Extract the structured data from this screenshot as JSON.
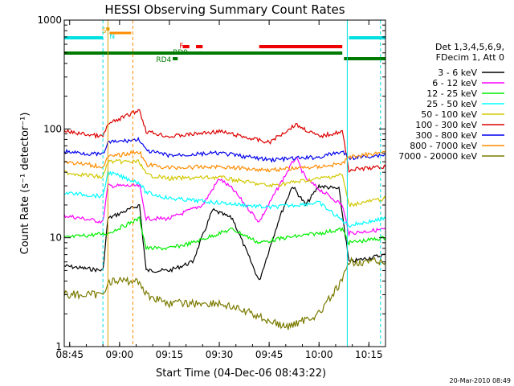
{
  "chart_data": {
    "type": "line",
    "title": "HESSI Observing Summary Count Rates",
    "ylabel": "Count Rate (s⁻¹ detector⁻¹)",
    "xlabel": "Start Time (04-Dec-06 08:43:22)",
    "yscale": "log",
    "ylim": [
      1,
      1000
    ],
    "xlim": [
      "08:43:22",
      "10:20:00"
    ],
    "x_ticks": [
      "08:45",
      "09:00",
      "09:15",
      "09:30",
      "09:45",
      "10:00",
      "10:15"
    ],
    "y_ticks": [
      "1",
      "10",
      "100",
      "1000"
    ],
    "legend_header": [
      "Det 1,3,4,5,6,9,",
      "FDecim 1, Att 0"
    ],
    "timestamp": "20-Mar-2010 08:49",
    "flags": [
      {
        "label": "S",
        "color": "#e0a000"
      },
      {
        "label": "N",
        "color": "#00e0e0"
      },
      {
        "label": "F",
        "color": "#ee0000"
      },
      {
        "label": "RD9",
        "color": "#007a00"
      },
      {
        "label": "RD4",
        "color": "#007a00"
      }
    ],
    "series": [
      {
        "name": "3 - 6 keV",
        "color": "#000000",
        "points": [
          [
            "08:43:22",
            5.5
          ],
          [
            "08:55:00",
            5
          ],
          [
            "08:56:30",
            15
          ],
          [
            "09:06:00",
            20
          ],
          [
            "09:08:00",
            5
          ],
          [
            "09:15:00",
            5
          ],
          [
            "09:22:00",
            6
          ],
          [
            "09:28:00",
            18
          ],
          [
            "09:34:00",
            15
          ],
          [
            "09:42:00",
            4
          ],
          [
            "09:48:00",
            15
          ],
          [
            "09:52:00",
            30
          ],
          [
            "09:56:00",
            20
          ],
          [
            "10:00:00",
            30
          ],
          [
            "10:06:00",
            28
          ],
          [
            "10:09:00",
            6
          ],
          [
            "10:20:00",
            7
          ]
        ]
      },
      {
        "name": "6 - 12 keV",
        "color": "#ff00ff",
        "points": [
          [
            "08:43:22",
            16
          ],
          [
            "08:55:00",
            14
          ],
          [
            "08:56:30",
            30
          ],
          [
            "09:06:00",
            30
          ],
          [
            "09:08:00",
            15
          ],
          [
            "09:15:00",
            15
          ],
          [
            "09:25:00",
            20
          ],
          [
            "09:30:00",
            35
          ],
          [
            "09:34:00",
            28
          ],
          [
            "09:42:00",
            14
          ],
          [
            "09:48:00",
            30
          ],
          [
            "09:53:00",
            55
          ],
          [
            "09:56:00",
            35
          ],
          [
            "10:00:00",
            28
          ],
          [
            "10:07:00",
            20
          ],
          [
            "10:09:00",
            11
          ],
          [
            "10:20:00",
            12
          ]
        ]
      },
      {
        "name": "12 - 25 keV",
        "color": "#00ee00",
        "points": [
          [
            "08:43:22",
            10
          ],
          [
            "08:56:30",
            11
          ],
          [
            "09:06:00",
            15
          ],
          [
            "09:08:00",
            8
          ],
          [
            "09:15:00",
            8
          ],
          [
            "09:22:00",
            9
          ],
          [
            "09:30:00",
            11
          ],
          [
            "09:34:00",
            12
          ],
          [
            "09:42:00",
            9
          ],
          [
            "09:50:00",
            10
          ],
          [
            "10:00:00",
            11
          ],
          [
            "10:07:00",
            12
          ],
          [
            "10:09:00",
            9
          ],
          [
            "10:20:00",
            10
          ]
        ]
      },
      {
        "name": "25 - 50 keV",
        "color": "#00ffff",
        "points": [
          [
            "08:43:22",
            26
          ],
          [
            "08:55:00",
            24
          ],
          [
            "08:56:30",
            40
          ],
          [
            "09:06:00",
            32
          ],
          [
            "09:08:00",
            26
          ],
          [
            "09:15:00",
            23
          ],
          [
            "09:30:00",
            21
          ],
          [
            "09:45:00",
            19
          ],
          [
            "10:00:00",
            21
          ],
          [
            "10:09:00",
            13
          ],
          [
            "10:20:00",
            15
          ]
        ]
      },
      {
        "name": "50 - 100 keV",
        "color": "#d2c800",
        "points": [
          [
            "08:43:22",
            40
          ],
          [
            "08:55:00",
            36
          ],
          [
            "08:56:30",
            50
          ],
          [
            "09:06:00",
            50
          ],
          [
            "09:08:00",
            38
          ],
          [
            "09:15:00",
            35
          ],
          [
            "09:30:00",
            36
          ],
          [
            "09:45:00",
            30
          ],
          [
            "10:00:00",
            35
          ],
          [
            "10:07:00",
            38
          ],
          [
            "10:09:00",
            20
          ],
          [
            "10:20:00",
            23
          ]
        ]
      },
      {
        "name": "100 - 300 keV",
        "color": "#dd0000",
        "points": [
          [
            "08:43:22",
            95
          ],
          [
            "08:55:00",
            85
          ],
          [
            "08:56:30",
            110
          ],
          [
            "09:06:00",
            150
          ],
          [
            "09:08:00",
            95
          ],
          [
            "09:15:00",
            85
          ],
          [
            "09:30:00",
            95
          ],
          [
            "09:45:00",
            75
          ],
          [
            "09:53:00",
            110
          ],
          [
            "10:00:00",
            85
          ],
          [
            "10:07:00",
            95
          ],
          [
            "10:09:00",
            42
          ],
          [
            "10:20:00",
            45
          ]
        ]
      },
      {
        "name": "300 - 800 keV",
        "color": "#0000ee",
        "points": [
          [
            "08:43:22",
            62
          ],
          [
            "08:55:00",
            58
          ],
          [
            "08:56:30",
            75
          ],
          [
            "09:06:00",
            80
          ],
          [
            "09:08:00",
            63
          ],
          [
            "09:15:00",
            57
          ],
          [
            "09:30:00",
            60
          ],
          [
            "09:45:00",
            52
          ],
          [
            "10:00:00",
            55
          ],
          [
            "10:07:00",
            62
          ],
          [
            "10:09:00",
            54
          ],
          [
            "10:20:00",
            58
          ]
        ]
      },
      {
        "name": "800 - 7000 keV",
        "color": "#ff8c00",
        "points": [
          [
            "08:43:22",
            50
          ],
          [
            "08:55:00",
            45
          ],
          [
            "08:56:30",
            55
          ],
          [
            "09:06:00",
            62
          ],
          [
            "09:08:00",
            47
          ],
          [
            "09:15:00",
            44
          ],
          [
            "09:30:00",
            45
          ],
          [
            "09:45:00",
            42
          ],
          [
            "10:00:00",
            45
          ],
          [
            "10:07:00",
            48
          ],
          [
            "10:09:00",
            55
          ],
          [
            "10:20:00",
            62
          ]
        ]
      },
      {
        "name": "7000 - 20000 keV",
        "color": "#7a7a00",
        "points": [
          [
            "08:43:22",
            3
          ],
          [
            "08:55:00",
            3
          ],
          [
            "08:56:30",
            4
          ],
          [
            "09:06:00",
            4
          ],
          [
            "09:08:00",
            3
          ],
          [
            "09:15:00",
            2.5
          ],
          [
            "09:30:00",
            2.5
          ],
          [
            "09:40:00",
            2
          ],
          [
            "09:50:00",
            1.5
          ],
          [
            "10:00:00",
            2
          ],
          [
            "10:07:00",
            4
          ],
          [
            "10:09:00",
            6
          ],
          [
            "10:20:00",
            6
          ]
        ]
      }
    ]
  }
}
